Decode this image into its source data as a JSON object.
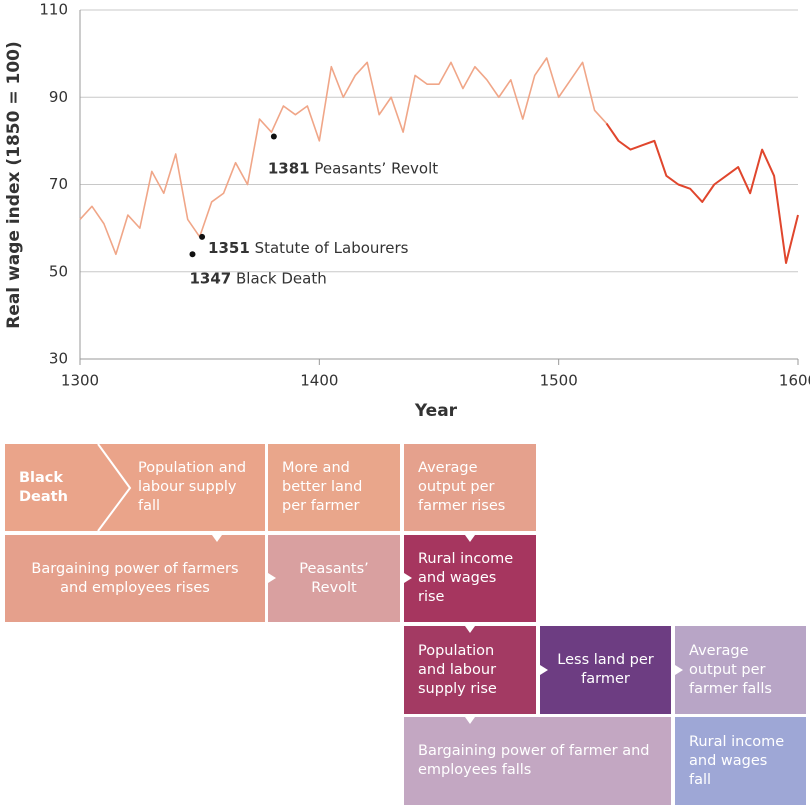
{
  "chart_data": {
    "type": "line",
    "x_label": "Year",
    "y_label": "Real wage index (1850 = 100)",
    "x": [
      1300,
      1305,
      1310,
      1315,
      1320,
      1325,
      1330,
      1335,
      1340,
      1345,
      1350,
      1355,
      1360,
      1365,
      1370,
      1375,
      1380,
      1385,
      1390,
      1395,
      1400,
      1405,
      1410,
      1415,
      1420,
      1425,
      1430,
      1435,
      1440,
      1445,
      1450,
      1455,
      1460,
      1465,
      1470,
      1475,
      1480,
      1485,
      1490,
      1495,
      1500,
      1505,
      1510,
      1515,
      1520,
      1525,
      1530,
      1535,
      1540,
      1545,
      1550,
      1555,
      1560,
      1565,
      1570,
      1575,
      1580,
      1585,
      1590,
      1595,
      1600
    ],
    "series": [
      {
        "color": "#f0a688",
        "values": [
          62,
          65,
          61,
          54,
          63,
          60,
          73,
          68,
          77,
          62,
          58,
          66,
          68,
          75,
          70,
          85,
          82,
          88,
          86,
          88,
          80,
          97,
          90,
          95,
          98,
          86,
          90,
          82,
          95,
          93,
          93,
          98,
          92,
          97,
          94,
          90,
          94,
          85,
          95,
          99,
          90,
          94,
          98,
          87,
          84,
          null,
          null,
          null,
          null,
          null,
          null,
          null,
          null,
          null,
          null,
          null,
          null,
          null,
          null,
          null,
          null
        ]
      },
      {
        "color": "#e0462d",
        "values": [
          null,
          null,
          null,
          null,
          null,
          null,
          null,
          null,
          null,
          null,
          null,
          null,
          null,
          null,
          null,
          null,
          null,
          null,
          null,
          null,
          null,
          null,
          null,
          null,
          null,
          null,
          null,
          null,
          null,
          null,
          null,
          null,
          null,
          null,
          null,
          null,
          null,
          null,
          null,
          null,
          null,
          null,
          null,
          null,
          84,
          80,
          78,
          79,
          80,
          72,
          70,
          69,
          66,
          70,
          72,
          74,
          68,
          78,
          72,
          52,
          63
        ]
      }
    ],
    "annotations": [
      {
        "x": 1347,
        "y": 54,
        "label": "Black Death"
      },
      {
        "x": 1351,
        "y": 58,
        "label": "Statute of Labourers"
      },
      {
        "x": 1381,
        "y": 81,
        "label": "Peasants’ Revolt"
      }
    ],
    "xlim": [
      1300,
      1600
    ],
    "xticks": [
      1300,
      1400,
      1500,
      1600
    ],
    "ylim": [
      30,
      110
    ],
    "yticks": [
      30,
      50,
      70,
      90,
      110
    ],
    "grid": true
  },
  "flow": {
    "boxes": [
      {
        "text": "Black Death",
        "color": "#eaa48a"
      },
      {
        "text": "Population and labour supply fall",
        "color": "#eaa48a"
      },
      {
        "text": "More and better land per farmer",
        "color": "#e9a68b"
      },
      {
        "text": "Average output per farmer rises",
        "color": "#e5a18d"
      },
      {
        "text": "Bargaining power of farmers and employees rises",
        "color": "#e5a08c"
      },
      {
        "text": "Peasants’ Revolt",
        "color": "#d9a0a0"
      },
      {
        "text": "Rural income and wages rise",
        "color": "#a6365f"
      },
      {
        "text": "Population and labour supply rise",
        "color": "#a33a63"
      },
      {
        "text": "Less land per farmer",
        "color": "#6d3d82"
      },
      {
        "text": "Average output per farmer falls",
        "color": "#b8a5c6"
      },
      {
        "text": "Bargaining power of farmer and employees falls",
        "color": "#c3a7c2"
      },
      {
        "text": "Rural income and wages fall",
        "color": "#9ea7d6"
      }
    ]
  }
}
